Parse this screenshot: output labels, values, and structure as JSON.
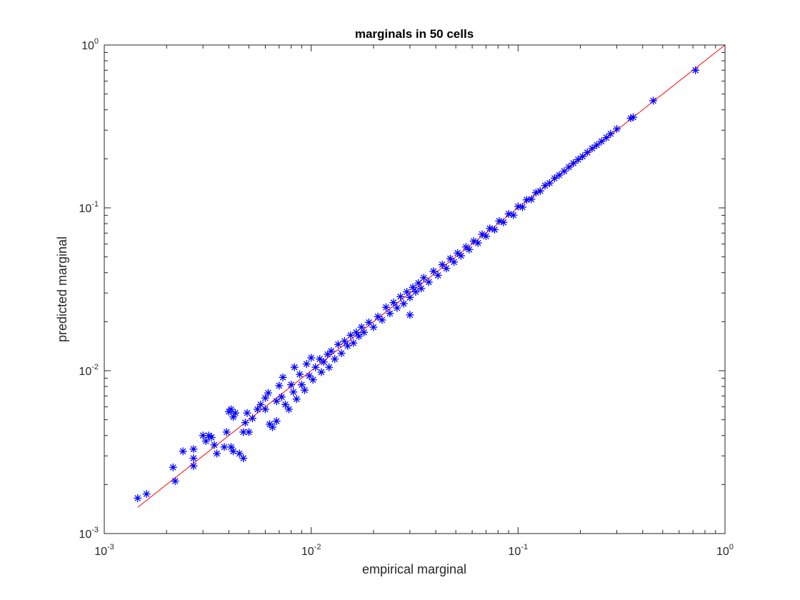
{
  "chart_data": {
    "type": "scatter",
    "title": "marginals in 50 cells",
    "xlabel": "empirical marginal",
    "ylabel": "predicted marginal",
    "xscale": "log",
    "yscale": "log",
    "xlim": [
      0.001,
      1
    ],
    "ylim": [
      0.001,
      1
    ],
    "grid": false,
    "x_ticks": [
      {
        "base": "10",
        "exp": "-3"
      },
      {
        "base": "10",
        "exp": "-2"
      },
      {
        "base": "10",
        "exp": "-1"
      },
      {
        "base": "10",
        "exp": "0"
      }
    ],
    "y_ticks": [
      {
        "base": "10",
        "exp": "-3"
      },
      {
        "base": "10",
        "exp": "-2"
      },
      {
        "base": "10",
        "exp": "-1"
      },
      {
        "base": "10",
        "exp": "0"
      }
    ],
    "colors": {
      "points": "#0000ff",
      "reference_line": "#ff0000",
      "axes": "#262626"
    },
    "marker": "asterisk",
    "reference_line": {
      "x": [
        0.00145,
        1
      ],
      "y": [
        0.00145,
        1
      ]
    },
    "series": [
      {
        "points": [
          [
            0.00145,
            0.00165
          ],
          [
            0.0016,
            0.00175
          ],
          [
            0.00215,
            0.00255
          ],
          [
            0.0022,
            0.0021
          ],
          [
            0.0024,
            0.0032
          ],
          [
            0.0027,
            0.0033
          ],
          [
            0.0027,
            0.0029
          ],
          [
            0.0027,
            0.0026
          ],
          [
            0.003,
            0.004
          ],
          [
            0.0031,
            0.0037
          ],
          [
            0.0032,
            0.004
          ],
          [
            0.0033,
            0.0039
          ],
          [
            0.0034,
            0.0035
          ],
          [
            0.0035,
            0.0031
          ],
          [
            0.0038,
            0.0034
          ],
          [
            0.0039,
            0.0042
          ],
          [
            0.004,
            0.0056
          ],
          [
            0.0041,
            0.0058
          ],
          [
            0.0042,
            0.0052
          ],
          [
            0.0043,
            0.0055
          ],
          [
            0.0041,
            0.0034
          ],
          [
            0.0042,
            0.0032
          ],
          [
            0.0045,
            0.0031
          ],
          [
            0.0047,
            0.0029
          ],
          [
            0.0047,
            0.0042
          ],
          [
            0.0048,
            0.0048
          ],
          [
            0.005,
            0.0042
          ],
          [
            0.0049,
            0.0055
          ],
          [
            0.0052,
            0.0051
          ],
          [
            0.0055,
            0.0058
          ],
          [
            0.0057,
            0.0062
          ],
          [
            0.006,
            0.0058
          ],
          [
            0.006,
            0.0068
          ],
          [
            0.0062,
            0.0073
          ],
          [
            0.0063,
            0.0047
          ],
          [
            0.0065,
            0.0045
          ],
          [
            0.0068,
            0.0049
          ],
          [
            0.0068,
            0.0065
          ],
          [
            0.007,
            0.0081
          ],
          [
            0.0072,
            0.0069
          ],
          [
            0.0073,
            0.0091
          ],
          [
            0.0075,
            0.0062
          ],
          [
            0.0078,
            0.0058
          ],
          [
            0.008,
            0.0082
          ],
          [
            0.0082,
            0.0074
          ],
          [
            0.0083,
            0.0105
          ],
          [
            0.0085,
            0.0067
          ],
          [
            0.0088,
            0.0095
          ],
          [
            0.009,
            0.0082
          ],
          [
            0.0093,
            0.0076
          ],
          [
            0.0095,
            0.011
          ],
          [
            0.0098,
            0.0093
          ],
          [
            0.01,
            0.012
          ],
          [
            0.0102,
            0.0088
          ],
          [
            0.0105,
            0.0105
          ],
          [
            0.011,
            0.0118
          ],
          [
            0.0112,
            0.0098
          ],
          [
            0.0115,
            0.0113
          ],
          [
            0.012,
            0.0126
          ],
          [
            0.0122,
            0.0105
          ],
          [
            0.0125,
            0.0132
          ],
          [
            0.013,
            0.0118
          ],
          [
            0.0135,
            0.0145
          ],
          [
            0.014,
            0.0128
          ],
          [
            0.0145,
            0.0152
          ],
          [
            0.015,
            0.0142
          ],
          [
            0.0155,
            0.0165
          ],
          [
            0.016,
            0.0148
          ],
          [
            0.0165,
            0.0172
          ],
          [
            0.017,
            0.0163
          ],
          [
            0.0175,
            0.0185
          ],
          [
            0.018,
            0.0172
          ],
          [
            0.019,
            0.0198
          ],
          [
            0.02,
            0.0185
          ],
          [
            0.021,
            0.0215
          ],
          [
            0.022,
            0.0205
          ],
          [
            0.023,
            0.0245
          ],
          [
            0.024,
            0.0225
          ],
          [
            0.025,
            0.0262
          ],
          [
            0.026,
            0.0243
          ],
          [
            0.027,
            0.0285
          ],
          [
            0.028,
            0.0258
          ],
          [
            0.029,
            0.0305
          ],
          [
            0.03,
            0.0282
          ],
          [
            0.03,
            0.022
          ],
          [
            0.031,
            0.0325
          ],
          [
            0.032,
            0.0305
          ],
          [
            0.033,
            0.0345
          ],
          [
            0.034,
            0.032
          ],
          [
            0.035,
            0.0372
          ],
          [
            0.037,
            0.035
          ],
          [
            0.039,
            0.0408
          ],
          [
            0.041,
            0.0385
          ],
          [
            0.043,
            0.0448
          ],
          [
            0.045,
            0.0425
          ],
          [
            0.047,
            0.0488
          ],
          [
            0.049,
            0.0465
          ],
          [
            0.051,
            0.0528
          ],
          [
            0.053,
            0.0508
          ],
          [
            0.056,
            0.0575
          ],
          [
            0.058,
            0.0555
          ],
          [
            0.061,
            0.0625
          ],
          [
            0.064,
            0.0608
          ],
          [
            0.067,
            0.0688
          ],
          [
            0.07,
            0.067
          ],
          [
            0.073,
            0.0748
          ],
          [
            0.077,
            0.0735
          ],
          [
            0.081,
            0.083
          ],
          [
            0.085,
            0.0815
          ],
          [
            0.09,
            0.0918
          ],
          [
            0.095,
            0.0902
          ],
          [
            0.1,
            0.102
          ],
          [
            0.105,
            0.101
          ],
          [
            0.11,
            0.112
          ],
          [
            0.116,
            0.113
          ],
          [
            0.122,
            0.124
          ],
          [
            0.128,
            0.127
          ],
          [
            0.135,
            0.137
          ],
          [
            0.142,
            0.142
          ],
          [
            0.15,
            0.152
          ],
          [
            0.158,
            0.159
          ],
          [
            0.167,
            0.168
          ],
          [
            0.176,
            0.178
          ],
          [
            0.185,
            0.188
          ],
          [
            0.195,
            0.198
          ],
          [
            0.205,
            0.207
          ],
          [
            0.216,
            0.219
          ],
          [
            0.228,
            0.232
          ],
          [
            0.24,
            0.243
          ],
          [
            0.253,
            0.256
          ],
          [
            0.267,
            0.27
          ],
          [
            0.28,
            0.285
          ],
          [
            0.3,
            0.305
          ],
          [
            0.35,
            0.355
          ],
          [
            0.36,
            0.36
          ],
          [
            0.45,
            0.455
          ],
          [
            0.72,
            0.7
          ]
        ]
      }
    ]
  }
}
